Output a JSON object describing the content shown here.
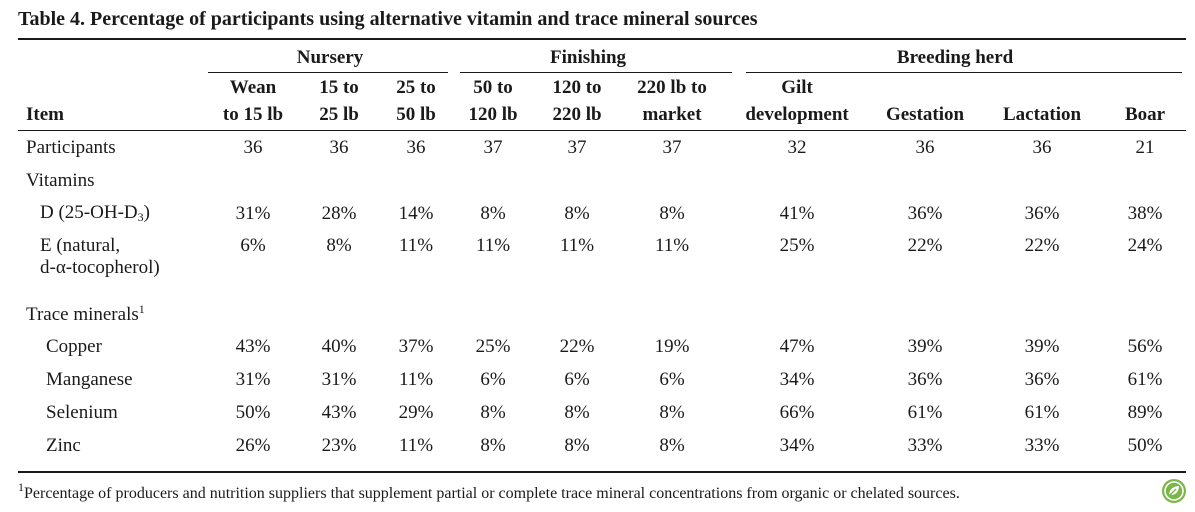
{
  "title": "Table 4. Percentage of participants using alternative vitamin and trace mineral sources",
  "groups": [
    "Nursery",
    "Finishing",
    "Breeding herd"
  ],
  "item_header": "Item",
  "columns": [
    {
      "line1": "Wean",
      "line2": "to 15 lb"
    },
    {
      "line1": "15 to",
      "line2": "25 lb"
    },
    {
      "line1": "25 to",
      "line2": "50 lb"
    },
    {
      "line1": "50 to",
      "line2": "120 lb"
    },
    {
      "line1": "120 to",
      "line2": "220 lb"
    },
    {
      "line1": "220 lb to",
      "line2": "market"
    },
    {
      "line1": "Gilt",
      "line2": "development"
    },
    {
      "line1": "",
      "line2": "Gestation"
    },
    {
      "line1": "",
      "line2": "Lactation"
    },
    {
      "line1": "",
      "line2": "Boar"
    }
  ],
  "rows": {
    "participants": {
      "label": "Participants",
      "values": [
        "36",
        "36",
        "36",
        "37",
        "37",
        "37",
        "32",
        "36",
        "36",
        "21"
      ]
    },
    "vitamins_header": {
      "label": "Vitamins"
    },
    "vitamin_d": {
      "label_main": "D (25-OH-D",
      "label_sub": "3",
      "label_end": ")",
      "values": [
        "31%",
        "28%",
        "14%",
        "8%",
        "8%",
        "8%",
        "41%",
        "36%",
        "36%",
        "38%"
      ]
    },
    "vitamin_e": {
      "label_line1": "E (natural,",
      "label_line2": "d-α-tocopherol)",
      "values": [
        "6%",
        "8%",
        "11%",
        "11%",
        "11%",
        "11%",
        "25%",
        "22%",
        "22%",
        "24%"
      ]
    },
    "trace_header": {
      "label": "Trace minerals",
      "sup": "1"
    },
    "copper": {
      "label": "Copper",
      "values": [
        "43%",
        "40%",
        "37%",
        "25%",
        "22%",
        "19%",
        "47%",
        "39%",
        "39%",
        "56%"
      ]
    },
    "manganese": {
      "label": "Manganese",
      "values": [
        "31%",
        "31%",
        "11%",
        "6%",
        "6%",
        "6%",
        "34%",
        "36%",
        "36%",
        "61%"
      ]
    },
    "selenium": {
      "label": "Selenium",
      "values": [
        "50%",
        "43%",
        "29%",
        "8%",
        "8%",
        "8%",
        "66%",
        "61%",
        "61%",
        "89%"
      ]
    },
    "zinc": {
      "label": "Zinc",
      "values": [
        "26%",
        "23%",
        "11%",
        "8%",
        "8%",
        "8%",
        "34%",
        "33%",
        "33%",
        "50%"
      ]
    }
  },
  "footnote": {
    "sup": "1",
    "text": "Percentage of producers and nutrition suppliers that supplement partial or complete trace mineral concentrations from organic or chelated sources."
  },
  "colors": {
    "logo_green": "#7ab648"
  }
}
